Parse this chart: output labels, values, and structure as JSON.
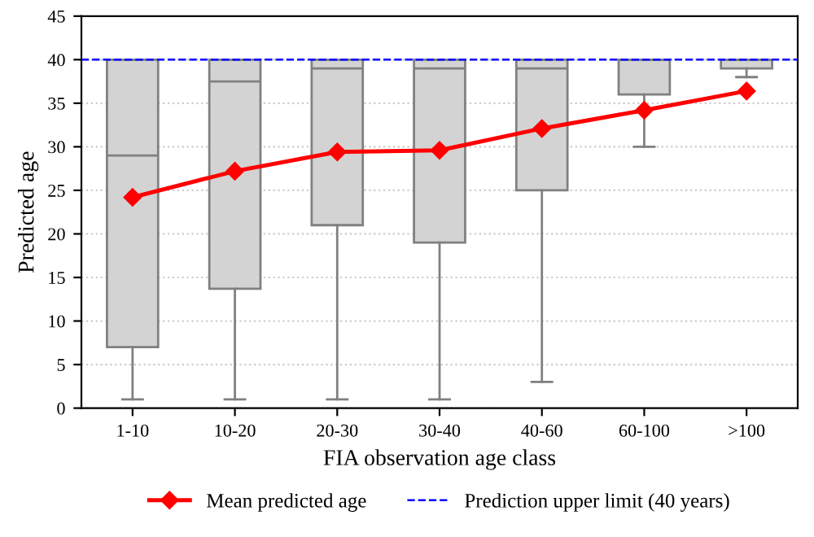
{
  "chart_data": {
    "type": "box",
    "xlabel": "FIA observation age class",
    "ylabel": "Predicted age",
    "categories": [
      "1-10",
      "10-20",
      "20-30",
      "30-40",
      "40-60",
      "60-100",
      ">100"
    ],
    "boxes": [
      {
        "low": 1,
        "q1": 7,
        "median": 29,
        "q3": 40,
        "high": 40
      },
      {
        "low": 1,
        "q1": 13.7,
        "median": 37.5,
        "q3": 40,
        "high": 40
      },
      {
        "low": 1,
        "q1": 21,
        "median": 39,
        "q3": 40,
        "high": 40
      },
      {
        "low": 1,
        "q1": 19,
        "median": 39,
        "q3": 40,
        "high": 40
      },
      {
        "low": 3,
        "q1": 25,
        "median": 39,
        "q3": 40,
        "high": 40
      },
      {
        "low": 30,
        "q1": 36,
        "median": 40,
        "q3": 40,
        "high": 40
      },
      {
        "low": 38,
        "q1": 39,
        "median": 40,
        "q3": 40,
        "high": 40
      }
    ],
    "series": [
      {
        "type": "line",
        "name": "Mean predicted age",
        "color": "#ff0000",
        "marker": "diamond",
        "values": [
          24.2,
          27.2,
          29.4,
          29.6,
          32.1,
          34.2,
          36.4
        ]
      }
    ],
    "ref_lines": [
      {
        "axis": "y",
        "value": 40,
        "label": "Prediction upper limit (40 years)",
        "color": "#0000ff",
        "line_style": "dashed"
      }
    ],
    "ylim": [
      0,
      45
    ],
    "yticks": [
      0,
      5,
      10,
      15,
      20,
      25,
      30,
      35,
      40,
      45
    ],
    "grid": "y",
    "legend": "bottom"
  }
}
